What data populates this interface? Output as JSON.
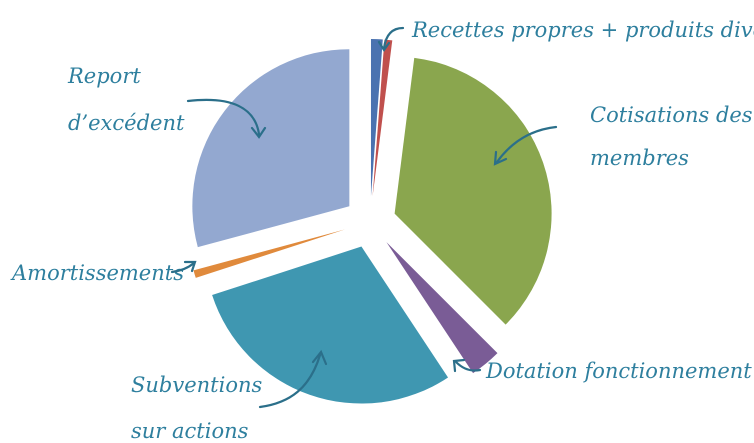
{
  "chart_data": {
    "type": "pie",
    "title": "",
    "slices": [
      {
        "label": "Recettes propres",
        "value": 1.2,
        "color": "#4a72b0"
      },
      {
        "label": "produits divers",
        "value": 0.8,
        "color": "#c0504d"
      },
      {
        "label": "Cotisations des membres",
        "value": 35.5,
        "color": "#8aa64e"
      },
      {
        "label": "Dotation fonctionnement Etat",
        "value": 3.2,
        "color": "#7a5c96"
      },
      {
        "label": "Subventions sur actions",
        "value": 29.3,
        "color": "#3f97b1"
      },
      {
        "label": "Amortissements",
        "value": 0.8,
        "color": "#e08a3c"
      },
      {
        "label": "Report d'excédent",
        "value": 29.2,
        "color": "#93a8d0"
      }
    ],
    "labels": {
      "recettes": "Recettes propres + produits divers",
      "cotisations_1": "Cotisations des",
      "cotisations_2": "membres",
      "dotation": "Dotation fonctionnement Etat",
      "subventions_1": "Subventions",
      "subventions_2": "sur actions",
      "amortissements": "Amortissements",
      "report_1": "Report",
      "report_2": "d’excédent"
    }
  }
}
